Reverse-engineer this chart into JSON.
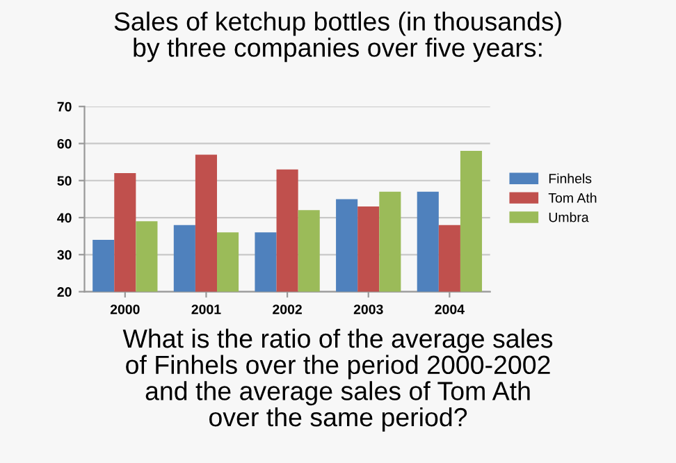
{
  "chart_data": {
    "type": "bar",
    "title": "Sales of ketchup bottles (in thousands)\nby three companies over five years:",
    "categories": [
      "2000",
      "2001",
      "2002",
      "2003",
      "2004"
    ],
    "series": [
      {
        "name": "Finhels",
        "color": "#4f81bd",
        "values": [
          34,
          38,
          36,
          45,
          47
        ]
      },
      {
        "name": "Tom Ath",
        "color": "#c0504d",
        "values": [
          52,
          57,
          53,
          43,
          38
        ]
      },
      {
        "name": "Umbra",
        "color": "#9bbb59",
        "values": [
          39,
          36,
          42,
          47,
          58
        ]
      }
    ],
    "ylim": [
      20,
      70
    ],
    "yticks": [
      20,
      30,
      40,
      50,
      60,
      70
    ],
    "grid": "y",
    "legend": "right",
    "annotations": [
      "What is the ratio of the average sales\nof Finhels over the period 2000-2002\nand the average sales of Tom Ath\nover the same period?"
    ]
  }
}
